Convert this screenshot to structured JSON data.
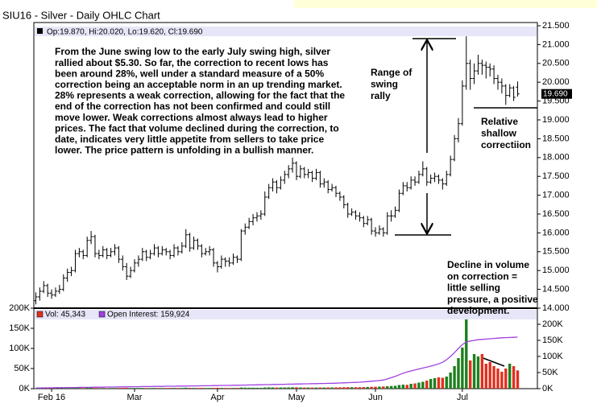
{
  "chart_data": [
    {
      "type": "ohlc",
      "title": "SIU16 - Silver - Daily OHLC Chart",
      "legend_text": "Op:19.870, Hi:20.020, Lo:19.620, Cl:19.690",
      "color": "#000000",
      "xlim": [
        -0.5,
        127
      ],
      "xticks": [
        {
          "value": 4,
          "label": "Feb 16"
        },
        {
          "value": 25,
          "label": "Mar"
        },
        {
          "value": 46,
          "label": "Apr"
        },
        {
          "value": 66,
          "label": "May"
        },
        {
          "value": 86,
          "label": "Jun"
        },
        {
          "value": 108,
          "label": "Jul"
        }
      ],
      "ylim": [
        14,
        21.5
      ],
      "yticks": [
        {
          "value": 14,
          "label": "14.000"
        },
        {
          "value": 14.5,
          "label": "14.500"
        },
        {
          "value": 15,
          "label": "15.000"
        },
        {
          "value": 15.5,
          "label": "15.500"
        },
        {
          "value": 16,
          "label": "16.000"
        },
        {
          "value": 16.5,
          "label": "16.500"
        },
        {
          "value": 17,
          "label": "17.000"
        },
        {
          "value": 17.5,
          "label": "17.500"
        },
        {
          "value": 18,
          "label": "18.000"
        },
        {
          "value": 18.5,
          "label": "18.500"
        },
        {
          "value": 19,
          "label": "19.000"
        },
        {
          "value": 19.5,
          "label": "19.500"
        },
        {
          "value": 20,
          "label": "20.000"
        },
        {
          "value": 20.5,
          "label": "20.500"
        },
        {
          "value": 21,
          "label": "21.000"
        },
        {
          "value": 21.5,
          "label": "21.500"
        }
      ],
      "last_price": {
        "value": 19.69,
        "label": "19.690"
      },
      "ohlc": [
        [
          14.2,
          14.42,
          14.1,
          14.3
        ],
        [
          14.3,
          14.55,
          14.2,
          14.45
        ],
        [
          14.45,
          14.72,
          14.4,
          14.6
        ],
        [
          14.6,
          14.65,
          14.3,
          14.4
        ],
        [
          14.4,
          14.5,
          14.25,
          14.35
        ],
        [
          14.35,
          14.55,
          14.3,
          14.45
        ],
        [
          14.45,
          14.62,
          14.38,
          14.5
        ],
        [
          14.5,
          14.9,
          14.45,
          14.8
        ],
        [
          14.8,
          15.05,
          14.7,
          14.95
        ],
        [
          14.95,
          15.1,
          14.85,
          15.0
        ],
        [
          15.0,
          15.55,
          14.95,
          15.45
        ],
        [
          15.45,
          15.6,
          15.35,
          15.5
        ],
        [
          15.5,
          15.55,
          15.3,
          15.4
        ],
        [
          15.4,
          15.9,
          15.35,
          15.8
        ],
        [
          15.8,
          16.05,
          15.7,
          15.9
        ],
        [
          15.9,
          15.95,
          15.35,
          15.45
        ],
        [
          15.45,
          15.55,
          15.3,
          15.4
        ],
        [
          15.4,
          15.65,
          15.35,
          15.55
        ],
        [
          15.55,
          15.6,
          15.3,
          15.4
        ],
        [
          15.4,
          15.6,
          15.35,
          15.5
        ],
        [
          15.5,
          15.7,
          15.4,
          15.6
        ],
        [
          15.6,
          15.65,
          15.2,
          15.3
        ],
        [
          15.3,
          15.4,
          15.0,
          15.1
        ],
        [
          15.1,
          15.2,
          14.75,
          14.85
        ],
        [
          14.85,
          15.1,
          14.8,
          15.0
        ],
        [
          15.0,
          15.3,
          14.95,
          15.2
        ],
        [
          15.2,
          15.4,
          15.1,
          15.3
        ],
        [
          15.3,
          15.6,
          15.25,
          15.5
        ],
        [
          15.5,
          15.55,
          15.25,
          15.35
        ],
        [
          15.35,
          15.55,
          15.3,
          15.45
        ],
        [
          15.45,
          15.7,
          15.4,
          15.6
        ],
        [
          15.6,
          15.65,
          15.35,
          15.45
        ],
        [
          15.45,
          15.65,
          15.4,
          15.55
        ],
        [
          15.55,
          15.6,
          15.4,
          15.5
        ],
        [
          15.5,
          15.55,
          15.3,
          15.4
        ],
        [
          15.4,
          15.7,
          15.35,
          15.6
        ],
        [
          15.6,
          15.65,
          15.4,
          15.5
        ],
        [
          15.5,
          15.75,
          15.45,
          15.65
        ],
        [
          15.65,
          16.1,
          15.6,
          15.95
        ],
        [
          15.95,
          16.0,
          15.5,
          15.6
        ],
        [
          15.6,
          15.9,
          15.55,
          15.8
        ],
        [
          15.8,
          15.85,
          15.55,
          15.65
        ],
        [
          15.65,
          15.7,
          15.35,
          15.45
        ],
        [
          15.45,
          15.6,
          15.4,
          15.5
        ],
        [
          15.5,
          15.65,
          15.4,
          15.55
        ],
        [
          15.55,
          15.6,
          15.1,
          15.2
        ],
        [
          15.2,
          15.25,
          14.95,
          15.1
        ],
        [
          15.1,
          15.4,
          15.05,
          15.3
        ],
        [
          15.3,
          15.35,
          15.1,
          15.25
        ],
        [
          15.25,
          15.35,
          15.1,
          15.2
        ],
        [
          15.2,
          15.45,
          15.15,
          15.35
        ],
        [
          15.35,
          15.4,
          15.2,
          15.3
        ],
        [
          15.3,
          16.1,
          15.25,
          16.05
        ],
        [
          16.05,
          16.25,
          15.95,
          16.15
        ],
        [
          16.15,
          16.4,
          16.1,
          16.3
        ],
        [
          16.3,
          16.5,
          16.2,
          16.4
        ],
        [
          16.4,
          16.55,
          16.3,
          16.45
        ],
        [
          16.45,
          16.6,
          16.35,
          16.5
        ],
        [
          16.5,
          17.1,
          16.45,
          16.95
        ],
        [
          16.95,
          17.3,
          16.9,
          17.2
        ],
        [
          17.2,
          17.45,
          17.1,
          17.35
        ],
        [
          17.35,
          17.4,
          17.05,
          17.2
        ],
        [
          17.2,
          17.5,
          17.15,
          17.4
        ],
        [
          17.4,
          17.65,
          17.3,
          17.55
        ],
        [
          17.55,
          17.8,
          17.45,
          17.7
        ],
        [
          17.7,
          18.0,
          17.6,
          17.85
        ],
        [
          17.85,
          17.9,
          17.4,
          17.5
        ],
        [
          17.5,
          17.8,
          17.45,
          17.7
        ],
        [
          17.7,
          17.75,
          17.45,
          17.55
        ],
        [
          17.55,
          17.7,
          17.45,
          17.6
        ],
        [
          17.6,
          17.65,
          17.35,
          17.45
        ],
        [
          17.45,
          17.7,
          17.4,
          17.6
        ],
        [
          17.6,
          17.65,
          17.2,
          17.3
        ],
        [
          17.3,
          17.45,
          17.2,
          17.35
        ],
        [
          17.35,
          17.4,
          17.05,
          17.15
        ],
        [
          17.15,
          17.3,
          17.1,
          17.2
        ],
        [
          17.2,
          17.25,
          16.95,
          17.05
        ],
        [
          17.05,
          17.1,
          16.85,
          16.95
        ],
        [
          16.95,
          17.0,
          16.65,
          16.75
        ],
        [
          16.75,
          16.8,
          16.4,
          16.5
        ],
        [
          16.5,
          16.65,
          16.45,
          16.55
        ],
        [
          16.55,
          16.6,
          16.35,
          16.45
        ],
        [
          16.45,
          16.55,
          16.3,
          16.4
        ],
        [
          16.4,
          16.45,
          16.15,
          16.25
        ],
        [
          16.25,
          16.45,
          16.2,
          16.35
        ],
        [
          16.35,
          16.4,
          15.95,
          16.05
        ],
        [
          16.05,
          16.15,
          15.9,
          16.0
        ],
        [
          16.0,
          16.2,
          15.95,
          16.1
        ],
        [
          16.1,
          16.15,
          15.9,
          16.0
        ],
        [
          16.0,
          16.55,
          15.95,
          16.45
        ],
        [
          16.45,
          16.6,
          16.3,
          16.45
        ],
        [
          16.45,
          16.7,
          16.4,
          16.6
        ],
        [
          16.6,
          17.15,
          16.55,
          17.05
        ],
        [
          17.05,
          17.35,
          17.0,
          17.25
        ],
        [
          17.25,
          17.35,
          17.1,
          17.2
        ],
        [
          17.2,
          17.5,
          17.15,
          17.4
        ],
        [
          17.4,
          17.5,
          17.25,
          17.35
        ],
        [
          17.35,
          17.65,
          17.3,
          17.55
        ],
        [
          17.55,
          17.9,
          17.5,
          17.7
        ],
        [
          17.7,
          17.75,
          17.25,
          17.35
        ],
        [
          17.35,
          17.55,
          17.3,
          17.45
        ],
        [
          17.45,
          17.6,
          17.35,
          17.5
        ],
        [
          17.5,
          17.55,
          17.3,
          17.4
        ],
        [
          17.4,
          17.45,
          17.15,
          17.3
        ],
        [
          17.3,
          17.65,
          17.25,
          17.55
        ],
        [
          17.55,
          18.05,
          17.5,
          17.95
        ],
        [
          17.95,
          18.6,
          17.9,
          18.5
        ],
        [
          18.5,
          19.05,
          18.4,
          18.9
        ],
        [
          18.9,
          20.05,
          18.85,
          19.9
        ],
        [
          19.9,
          21.22,
          19.8,
          20.5
        ],
        [
          20.5,
          20.6,
          19.8,
          20.1
        ],
        [
          20.1,
          20.5,
          19.95,
          20.3
        ],
        [
          20.3,
          20.73,
          20.2,
          20.5
        ],
        [
          20.5,
          20.6,
          20.2,
          20.45
        ],
        [
          20.45,
          20.55,
          20.1,
          20.4
        ],
        [
          20.4,
          20.5,
          20.15,
          20.35
        ],
        [
          20.35,
          20.45,
          19.95,
          20.1
        ],
        [
          20.1,
          20.2,
          19.8,
          20.0
        ],
        [
          20.0,
          20.1,
          19.7,
          19.9
        ],
        [
          19.9,
          19.95,
          19.4,
          19.65
        ],
        [
          19.65,
          19.95,
          19.6,
          19.85
        ],
        [
          19.85,
          19.9,
          19.5,
          19.6
        ],
        [
          19.87,
          20.02,
          19.62,
          19.69
        ]
      ]
    },
    {
      "type": "bar",
      "up_color": "#1e7f1e",
      "down_color": "#e0301e",
      "ylim": [
        0,
        200000
      ],
      "yticks": [
        {
          "value": 0,
          "label": "0K"
        },
        {
          "value": 50000,
          "label": "50K"
        },
        {
          "value": 100000,
          "label": "100K"
        },
        {
          "value": 150000,
          "label": "150K"
        },
        {
          "value": 200000,
          "label": "200K"
        }
      ],
      "y2lim": [
        0,
        250000
      ],
      "y2ticks": [
        {
          "value": 0,
          "label": "0K"
        },
        {
          "value": 50000,
          "label": "50K"
        },
        {
          "value": 100000,
          "label": "100K"
        },
        {
          "value": 150000,
          "label": "150K"
        },
        {
          "value": 200000,
          "label": "200K"
        }
      ],
      "series": [
        {
          "name": "Vol: 45,343",
          "color": "#e0301e",
          "values": [
            1000,
            1200,
            1500,
            1000,
            1100,
            1300,
            1200,
            1500,
            1400,
            1600,
            2000,
            1800,
            1500,
            2200,
            2000,
            1800,
            1500,
            1600,
            1400,
            1500,
            1600,
            1700,
            1800,
            2000,
            1600,
            1500,
            1700,
            1800,
            1600,
            1500,
            1700,
            1600,
            1500,
            1600,
            1700,
            1800,
            1600,
            1700,
            2200,
            2000,
            1800,
            1700,
            1900,
            1600,
            1700,
            2000,
            2100,
            1900,
            1800,
            1700,
            1800,
            1900,
            2800,
            2500,
            2400,
            2300,
            2200,
            2100,
            3000,
            3200,
            3000,
            2800,
            2900,
            3000,
            3200,
            3500,
            3400,
            3000,
            2900,
            2800,
            2700,
            2800,
            3000,
            2900,
            3100,
            3000,
            3200,
            3300,
            3500,
            3800,
            3500,
            3600,
            3700,
            4000,
            4200,
            4500,
            4800,
            5000,
            5500,
            6000,
            6500,
            7000,
            9000,
            10000,
            9500,
            12000,
            13000,
            15000,
            17000,
            20000,
            24000,
            26000,
            28000,
            27000,
            30000,
            40000,
            56000,
            76000,
            102000,
            172000,
            70000,
            86000,
            80000,
            86000,
            62000,
            66000,
            56000,
            50000,
            42000,
            50000,
            62000,
            56000,
            45343
          ]
        },
        {
          "name": "Open Interest: 159,924",
          "color": "#a040e0",
          "axis": "y2",
          "values": [
            2000,
            2000,
            2500,
            2500,
            2500,
            3000,
            3000,
            3000,
            3500,
            3500,
            3500,
            4000,
            4000,
            4000,
            4000,
            4500,
            4500,
            4500,
            5000,
            5000,
            5000,
            5500,
            5500,
            5500,
            6000,
            6000,
            6000,
            6500,
            6500,
            6500,
            7000,
            7000,
            7000,
            7500,
            7500,
            7500,
            8000,
            8000,
            8000,
            8500,
            8500,
            8500,
            9000,
            9000,
            9000,
            9500,
            9500,
            10000,
            10000,
            10000,
            10500,
            10500,
            11000,
            11000,
            11500,
            11500,
            12000,
            12000,
            12500,
            12500,
            13000,
            13000,
            13500,
            13500,
            14000,
            14000,
            14500,
            14500,
            15000,
            15000,
            15500,
            15500,
            16000,
            16000,
            16500,
            16500,
            17000,
            17500,
            18000,
            18500,
            19000,
            19500,
            20000,
            21000,
            22000,
            23000,
            24000,
            25000,
            27000,
            30000,
            34000,
            38000,
            43000,
            48000,
            52000,
            55000,
            58000,
            61000,
            64000,
            67000,
            70000,
            73000,
            77000,
            82000,
            90000,
            100000,
            112000,
            125000,
            137000,
            145000,
            148000,
            150000,
            152000,
            153000,
            154000,
            155000,
            156000,
            157000,
            158000,
            158500,
            159000,
            159500,
            159924
          ]
        }
      ]
    }
  ],
  "annotations": {
    "note_lines": [
      "From the June swing low to the early July swing high, silver",
      "rallied about $5.30.  So far, the correction to recent lows has",
      "been around 28%, well under a standard measure of a 50%",
      "correction being an acceptable norm in an up trending market.",
      "28% represents a weak correction, allowing for the fact that the",
      "end of the correction has not been confirmed and could still",
      "move lower.  Weak corrections almost always lead to higher",
      "prices.  The fact that volume declined during the correction, to",
      "date, indicates very little appetite from sellers to take price",
      "lower.  The price pattern is unfolding in a bullish manner."
    ],
    "range_label": [
      "Range of",
      "swing",
      "rally"
    ],
    "correction_label": [
      "Relative",
      "shallow",
      "correctiion"
    ],
    "volume_note": [
      "Decline in volume",
      "on correction =",
      "little selling",
      "pressure, a positive",
      "development."
    ]
  }
}
